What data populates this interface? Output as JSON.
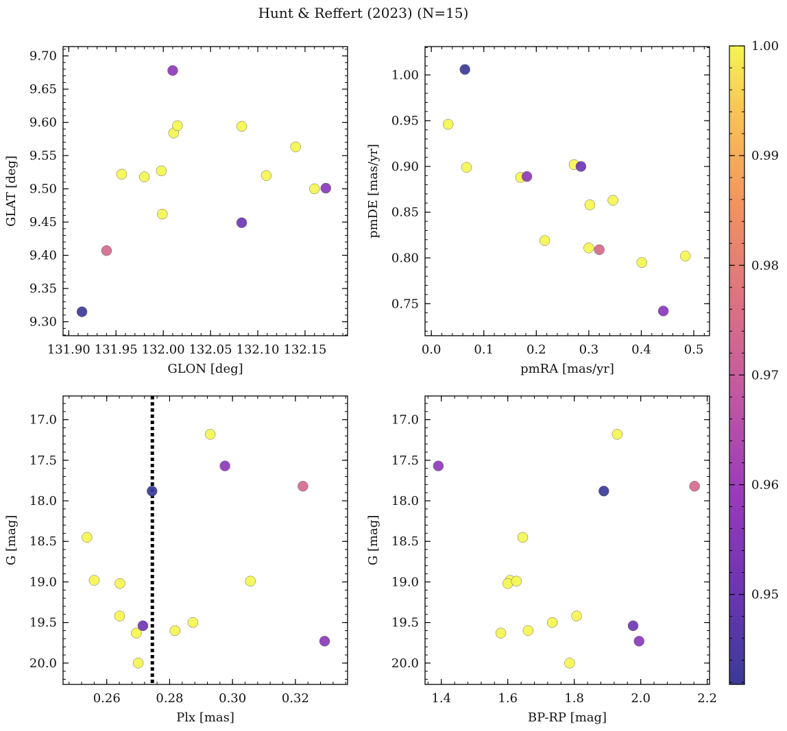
{
  "figure": {
    "title": "Hunt & Reffert (2023) (N=15)"
  },
  "colorbar": {
    "min": 0.9418,
    "max": 1.0,
    "ticks": [
      "0.95",
      "0.96",
      "0.97",
      "0.98",
      "0.99",
      "1.00"
    ],
    "tick_values": [
      0.95,
      0.96,
      0.97,
      0.98,
      0.99,
      1.0
    ],
    "colormap": "plasma"
  },
  "chart_data": [
    {
      "type": "scatter",
      "id": "glon-glat",
      "title": "",
      "xlabel": "GLON [deg]",
      "ylabel": "GLAT [deg]",
      "xlim": [
        131.894,
        132.195
      ],
      "ylim": [
        9.279,
        9.714
      ],
      "xticks": [
        131.9,
        131.95,
        132.0,
        132.05,
        132.1,
        132.15
      ],
      "xticklabels": [
        "131.90",
        "131.95",
        "132.00",
        "132.05",
        "132.10",
        "132.15"
      ],
      "yticks": [
        9.3,
        9.35,
        9.4,
        9.45,
        9.5,
        9.55,
        9.6,
        9.65,
        9.7
      ],
      "yticklabels": [
        "9.30",
        "9.35",
        "9.40",
        "9.45",
        "9.50",
        "9.55",
        "9.60",
        "9.65",
        "9.70"
      ],
      "x_minor": 0.01,
      "y_minor": 0.01,
      "invert_y": false,
      "points": [
        {
          "x": 131.914,
          "y": 9.315,
          "p": 0.942
        },
        {
          "x": 131.94,
          "y": 9.407,
          "p": 0.974
        },
        {
          "x": 132.01,
          "y": 9.678,
          "p": 0.957
        },
        {
          "x": 132.083,
          "y": 9.449,
          "p": 0.951
        },
        {
          "x": 132.172,
          "y": 9.501,
          "p": 0.956
        },
        {
          "x": 131.956,
          "y": 9.522,
          "p": 1.0
        },
        {
          "x": 131.98,
          "y": 9.518,
          "p": 1.0
        },
        {
          "x": 131.998,
          "y": 9.527,
          "p": 1.0
        },
        {
          "x": 131.999,
          "y": 9.462,
          "p": 1.0
        },
        {
          "x": 132.011,
          "y": 9.584,
          "p": 1.0
        },
        {
          "x": 132.015,
          "y": 9.595,
          "p": 1.0
        },
        {
          "x": 132.083,
          "y": 9.594,
          "p": 1.0
        },
        {
          "x": 132.109,
          "y": 9.52,
          "p": 1.0
        },
        {
          "x": 132.14,
          "y": 9.563,
          "p": 1.0
        },
        {
          "x": 132.16,
          "y": 9.5,
          "p": 1.0
        }
      ]
    },
    {
      "type": "scatter",
      "id": "pmra-pmde",
      "title": "",
      "xlabel": "pmRA [mas/yr]",
      "ylabel": "pmDE [mas/yr]",
      "xlim": [
        -0.012,
        0.53
      ],
      "ylim": [
        0.715,
        1.031
      ],
      "xticks": [
        0.0,
        0.1,
        0.2,
        0.3,
        0.4,
        0.5
      ],
      "xticklabels": [
        "0.0",
        "0.1",
        "0.2",
        "0.3",
        "0.4",
        "0.5"
      ],
      "yticks": [
        0.75,
        0.8,
        0.85,
        0.9,
        0.95,
        1.0
      ],
      "yticklabels": [
        "0.75",
        "0.80",
        "0.85",
        "0.90",
        "0.95",
        "1.00"
      ],
      "x_minor": 0.02,
      "y_minor": 0.01,
      "invert_y": false,
      "points": [
        {
          "x": 0.064,
          "y": 1.006,
          "p": 0.942
        },
        {
          "x": 0.032,
          "y": 0.946,
          "p": 1.0
        },
        {
          "x": 0.067,
          "y": 0.899,
          "p": 1.0
        },
        {
          "x": 0.17,
          "y": 0.888,
          "p": 1.0
        },
        {
          "x": 0.182,
          "y": 0.889,
          "p": 0.957
        },
        {
          "x": 0.216,
          "y": 0.819,
          "p": 1.0
        },
        {
          "x": 0.272,
          "y": 0.902,
          "p": 1.0
        },
        {
          "x": 0.285,
          "y": 0.9,
          "p": 0.951
        },
        {
          "x": 0.302,
          "y": 0.858,
          "p": 1.0
        },
        {
          "x": 0.3,
          "y": 0.811,
          "p": 1.0
        },
        {
          "x": 0.32,
          "y": 0.809,
          "p": 0.974
        },
        {
          "x": 0.346,
          "y": 0.863,
          "p": 1.0
        },
        {
          "x": 0.401,
          "y": 0.795,
          "p": 1.0
        },
        {
          "x": 0.442,
          "y": 0.742,
          "p": 0.956
        },
        {
          "x": 0.484,
          "y": 0.802,
          "p": 1.0
        }
      ]
    },
    {
      "type": "scatter",
      "id": "plx-g",
      "title": "",
      "xlabel": "Plx [mas]",
      "ylabel": "G [mag]",
      "xlim": [
        0.2461,
        0.3366
      ],
      "ylim": [
        20.263,
        16.708
      ],
      "xticks": [
        0.26,
        0.28,
        0.3,
        0.32
      ],
      "xticklabels": [
        "0.26",
        "0.28",
        "0.30",
        "0.32"
      ],
      "yticks": [
        17.0,
        17.5,
        18.0,
        18.5,
        19.0,
        19.5,
        20.0
      ],
      "yticklabels": [
        "17.0",
        "17.5",
        "18.0",
        "18.5",
        "19.0",
        "19.5",
        "20.0"
      ],
      "x_minor": 0.004,
      "y_minor": 0.1,
      "invert_y": true,
      "vline": {
        "x": 0.2745,
        "style": "dotted"
      },
      "points": [
        {
          "x": 0.2744,
          "y": 17.88,
          "p": 0.942
        },
        {
          "x": 0.2976,
          "y": 17.57,
          "p": 0.957
        },
        {
          "x": 0.3224,
          "y": 17.82,
          "p": 0.974
        },
        {
          "x": 0.2715,
          "y": 19.54,
          "p": 0.951
        },
        {
          "x": 0.3293,
          "y": 19.73,
          "p": 0.956
        },
        {
          "x": 0.2929,
          "y": 17.18,
          "p": 1.0
        },
        {
          "x": 0.2537,
          "y": 18.45,
          "p": 1.0
        },
        {
          "x": 0.256,
          "y": 18.98,
          "p": 1.0
        },
        {
          "x": 0.2642,
          "y": 19.02,
          "p": 1.0
        },
        {
          "x": 0.2641,
          "y": 19.42,
          "p": 1.0
        },
        {
          "x": 0.2694,
          "y": 19.63,
          "p": 1.0
        },
        {
          "x": 0.27,
          "y": 20.0,
          "p": 1.0
        },
        {
          "x": 0.2817,
          "y": 19.6,
          "p": 1.0
        },
        {
          "x": 0.2874,
          "y": 19.5,
          "p": 1.0
        },
        {
          "x": 0.3057,
          "y": 18.99,
          "p": 1.0
        }
      ]
    },
    {
      "type": "scatter",
      "id": "bprp-g",
      "title": "",
      "xlabel": "BP-RP [mag]",
      "ylabel": "G [mag]",
      "xlim": [
        1.351,
        2.207
      ],
      "ylim": [
        20.263,
        16.708
      ],
      "xticks": [
        1.4,
        1.6,
        1.8,
        2.0,
        2.2
      ],
      "xticklabels": [
        "1.4",
        "1.6",
        "1.8",
        "2.0",
        "2.2"
      ],
      "yticks": [
        17.0,
        17.5,
        18.0,
        18.5,
        19.0,
        19.5,
        20.0
      ],
      "yticklabels": [
        "17.0",
        "17.5",
        "18.0",
        "18.5",
        "19.0",
        "19.5",
        "20.0"
      ],
      "x_minor": 0.04,
      "y_minor": 0.1,
      "invert_y": true,
      "points": [
        {
          "x": 1.391,
          "y": 17.57,
          "p": 0.957
        },
        {
          "x": 1.889,
          "y": 17.88,
          "p": 0.942
        },
        {
          "x": 2.162,
          "y": 17.82,
          "p": 0.974
        },
        {
          "x": 1.977,
          "y": 19.54,
          "p": 0.951
        },
        {
          "x": 1.995,
          "y": 19.73,
          "p": 0.956
        },
        {
          "x": 1.929,
          "y": 17.18,
          "p": 1.0
        },
        {
          "x": 1.645,
          "y": 18.45,
          "p": 1.0
        },
        {
          "x": 1.607,
          "y": 18.98,
          "p": 1.0
        },
        {
          "x": 1.6,
          "y": 19.02,
          "p": 1.0
        },
        {
          "x": 1.626,
          "y": 18.99,
          "p": 1.0
        },
        {
          "x": 1.807,
          "y": 19.42,
          "p": 1.0
        },
        {
          "x": 1.734,
          "y": 19.5,
          "p": 1.0
        },
        {
          "x": 1.661,
          "y": 19.6,
          "p": 1.0
        },
        {
          "x": 1.579,
          "y": 19.63,
          "p": 1.0
        },
        {
          "x": 1.786,
          "y": 20.0,
          "p": 1.0
        }
      ]
    }
  ]
}
